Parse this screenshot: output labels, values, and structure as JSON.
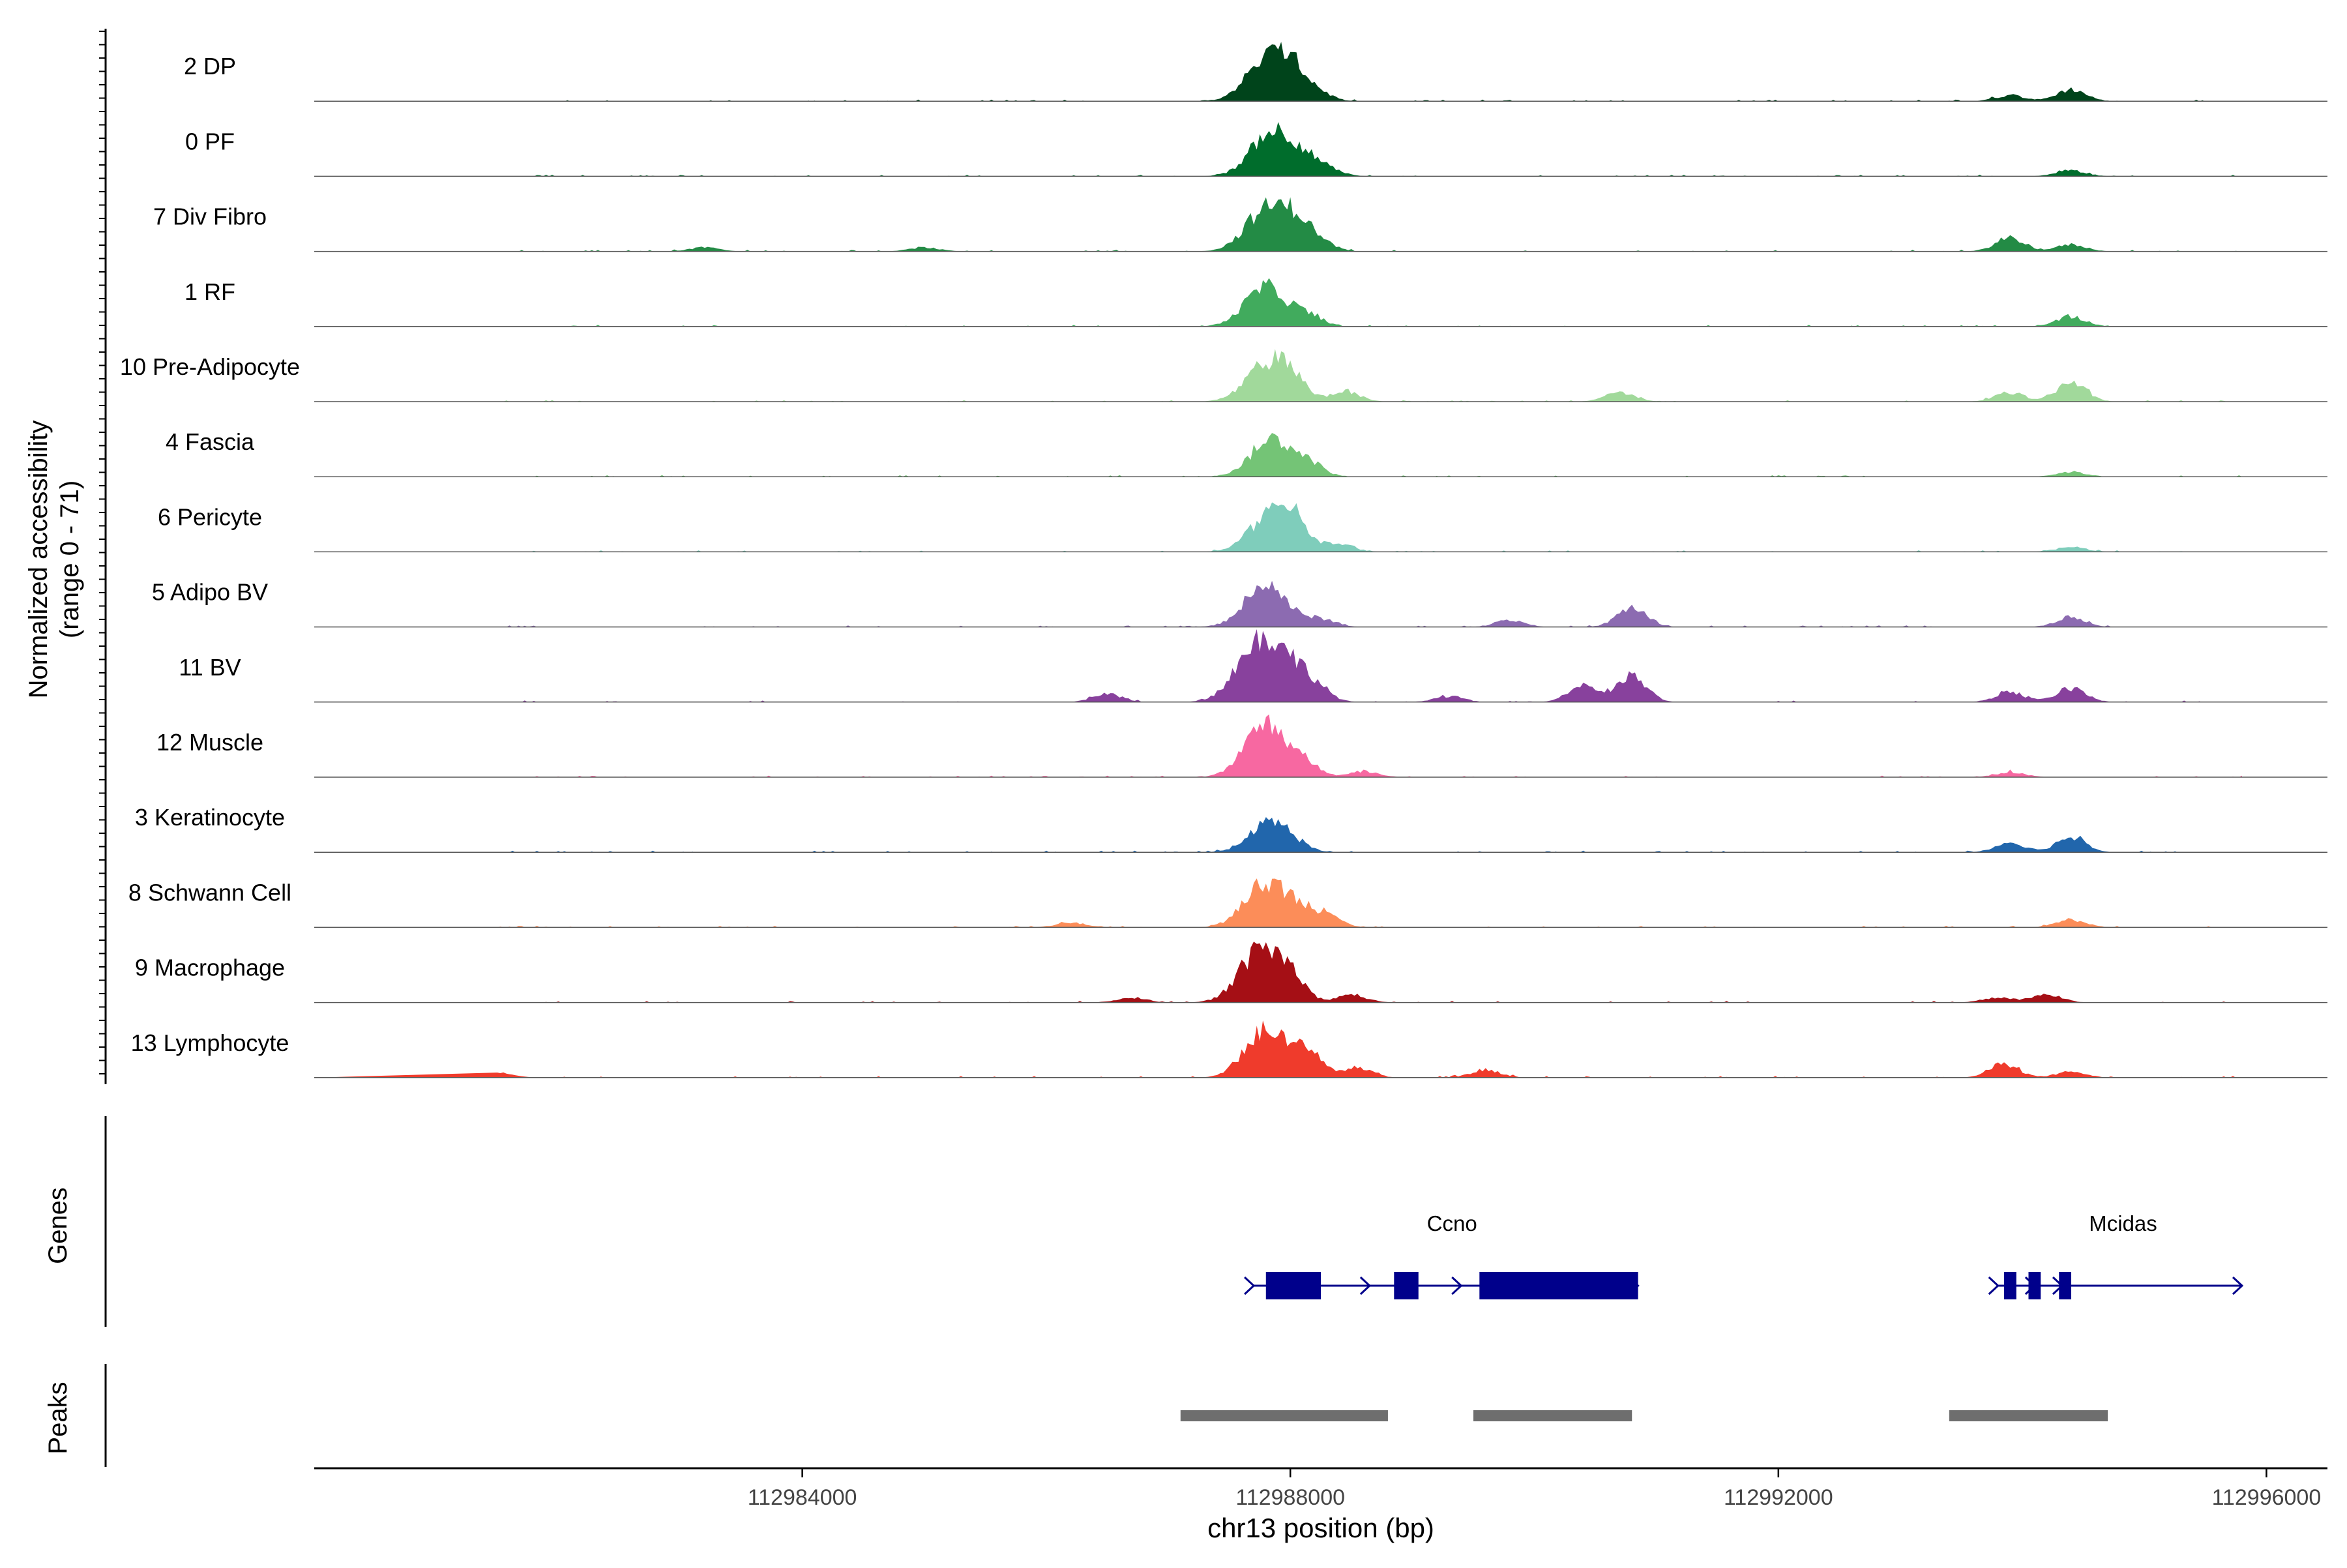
{
  "chart_data": {
    "type": "area",
    "chromosome": "chr13",
    "xlabel": "chr13 position (bp)",
    "ylabel_line1": "Normalized accessibility",
    "ylabel_line2": "(range 0 - 71)",
    "y_range": [
      0,
      71
    ],
    "xlim": [
      112980000,
      112996500
    ],
    "x_ticks": [
      112984000,
      112988000,
      112992000,
      112996000
    ],
    "x_tick_labels": [
      "112984000",
      "112988000",
      "112992000",
      "112996000"
    ],
    "genes_label": "Genes",
    "peaks_label": "Peaks",
    "tracks": [
      {
        "name": "2 DP",
        "color": "#00441b",
        "peaks": [
          [
            112987800,
            40
          ],
          [
            112988000,
            24
          ],
          [
            112988200,
            10
          ],
          [
            112993900,
            6
          ],
          [
            112994400,
            12
          ]
        ]
      },
      {
        "name": "0 PF",
        "color": "#006d2c",
        "peaks": [
          [
            112987850,
            46
          ],
          [
            112988100,
            14
          ],
          [
            112988300,
            7
          ],
          [
            112994400,
            6
          ]
        ]
      },
      {
        "name": "7 Div Fibro",
        "color": "#238b45",
        "peaks": [
          [
            112987800,
            42
          ],
          [
            112988050,
            26
          ],
          [
            112988250,
            8
          ],
          [
            112983200,
            4
          ],
          [
            112985000,
            4
          ],
          [
            112993900,
            14
          ],
          [
            112994400,
            7
          ]
        ]
      },
      {
        "name": "1 RF",
        "color": "#41ab5d",
        "peaks": [
          [
            112987800,
            40
          ],
          [
            112988150,
            10
          ],
          [
            112994400,
            10
          ]
        ]
      },
      {
        "name": "10 Pre-Adipocyte",
        "color": "#a1d99b",
        "peaks": [
          [
            112987800,
            34
          ],
          [
            112988000,
            22
          ],
          [
            112988450,
            10
          ],
          [
            112990700,
            10
          ],
          [
            112994400,
            20
          ],
          [
            112993900,
            9
          ]
        ]
      },
      {
        "name": "4 Fascia",
        "color": "#74c476",
        "peaks": [
          [
            112987850,
            38
          ],
          [
            112988150,
            12
          ],
          [
            112994400,
            5
          ]
        ]
      },
      {
        "name": "6 Pericyte",
        "color": "#7fcdbb",
        "peaks": [
          [
            112987850,
            40
          ],
          [
            112988050,
            20
          ],
          [
            112988400,
            8
          ],
          [
            112994400,
            5
          ]
        ]
      },
      {
        "name": "5 Adipo BV",
        "color": "#8c6bb1",
        "peaks": [
          [
            112987800,
            44
          ],
          [
            112988250,
            8
          ],
          [
            112990800,
            20
          ],
          [
            112989800,
            7
          ],
          [
            112994400,
            10
          ]
        ]
      },
      {
        "name": "11 BV",
        "color": "#88419d",
        "peaks": [
          [
            112987700,
            48
          ],
          [
            112987950,
            38
          ],
          [
            112988200,
            12
          ],
          [
            112986500,
            8
          ],
          [
            112989300,
            6
          ],
          [
            112990400,
            18
          ],
          [
            112990800,
            26
          ],
          [
            112994400,
            14
          ],
          [
            112993900,
            10
          ]
        ]
      },
      {
        "name": "12 Muscle",
        "color": "#f768a1",
        "peaks": [
          [
            112987800,
            54
          ],
          [
            112988100,
            12
          ],
          [
            112988600,
            6
          ],
          [
            112993900,
            5
          ]
        ]
      },
      {
        "name": "3 Keratinocyte",
        "color": "#2166ac",
        "peaks": [
          [
            112987850,
            32
          ],
          [
            112993900,
            10
          ],
          [
            112994400,
            16
          ]
        ]
      },
      {
        "name": "8 Schwann Cell",
        "color": "#fc8d59",
        "peaks": [
          [
            112987800,
            46
          ],
          [
            112988100,
            14
          ],
          [
            112988300,
            10
          ],
          [
            112994400,
            8
          ],
          [
            112986200,
            5
          ]
        ]
      },
      {
        "name": "9 Macrophage",
        "color": "#a50f15",
        "peaks": [
          [
            112987750,
            52
          ],
          [
            112988000,
            22
          ],
          [
            112988500,
            8
          ],
          [
            112994200,
            8
          ],
          [
            112993800,
            5
          ],
          [
            112986700,
            5
          ]
        ]
      },
      {
        "name": "13 Lymphocyte",
        "color": "#ef3b2c",
        "peaks": [
          [
            112987800,
            48
          ],
          [
            112988150,
            24
          ],
          [
            112988550,
            10
          ],
          [
            112993850,
            14
          ],
          [
            112989600,
            8
          ],
          [
            112994400,
            6
          ],
          [
            112981500,
            6
          ]
        ]
      }
    ],
    "genes": [
      {
        "name": "Ccno",
        "start": 112987700,
        "end": 112990850,
        "strand": "+",
        "exons": [
          [
            112987800,
            112988250
          ],
          [
            112988850,
            112989050
          ],
          [
            112989550,
            112990850
          ]
        ]
      },
      {
        "name": "Mcidas",
        "start": 112993800,
        "end": 112995800,
        "strand": "+",
        "exons": [
          [
            112993850,
            112993950
          ],
          [
            112994050,
            112994150
          ],
          [
            112994300,
            112994400
          ]
        ]
      }
    ],
    "peak_regions": [
      [
        112987100,
        112988800
      ],
      [
        112989500,
        112990800
      ],
      [
        112993400,
        112994700
      ]
    ]
  }
}
